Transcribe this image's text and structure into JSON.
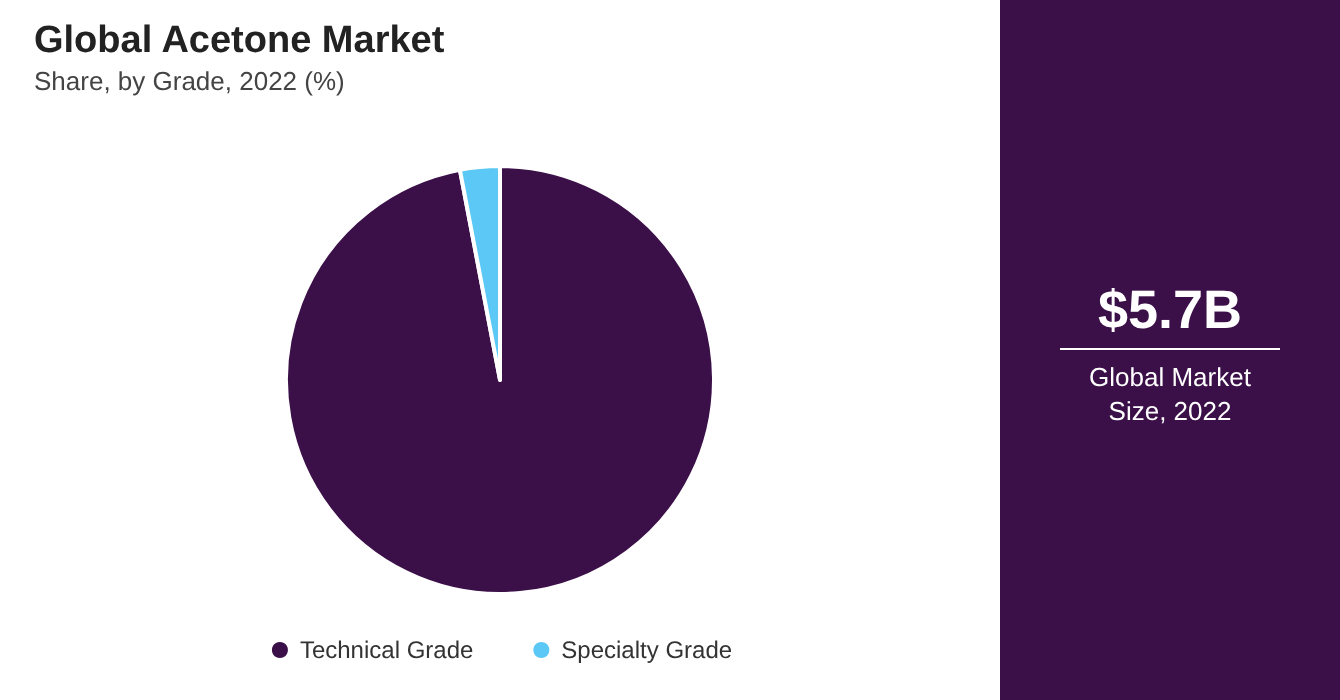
{
  "chart_data": {
    "type": "pie",
    "title": "Global Acetone Market",
    "subtitle": "Share, by Grade, 2022 (%)",
    "categories": [
      "Technical Grade",
      "Specialty Grade"
    ],
    "values": [
      97,
      3
    ],
    "colors": [
      "#3b0f48",
      "#5bc8f5"
    ],
    "legend": "bottom",
    "annotations": [
      "$5.7B",
      "Global Market Size, 2022"
    ]
  }
}
